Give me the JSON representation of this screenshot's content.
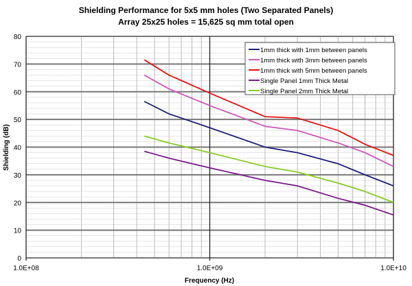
{
  "chart_data": {
    "type": "line",
    "title": "Shielding Performance for 5x5 mm holes (Two Separated Panels)",
    "subtitle": "Array 25x25 holes = 15,625 sq mm total open",
    "xlabel": "Frequency (Hz)",
    "ylabel": "Shielding (dB)",
    "xscale": "log",
    "xlim": [
      100000000.0,
      10000000000.0
    ],
    "ylim": [
      0,
      80
    ],
    "xticks": [
      {
        "v": 100000000.0,
        "label": "1.0E+08"
      },
      {
        "v": 1000000000.0,
        "label": "1.0E+09"
      },
      {
        "v": 10000000000.0,
        "label": "1.0E+10"
      }
    ],
    "yticks": [
      {
        "v": 0,
        "label": "0"
      },
      {
        "v": 10,
        "label": "10"
      },
      {
        "v": 20,
        "label": "20"
      },
      {
        "v": 30,
        "label": "30"
      },
      {
        "v": 40,
        "label": "40"
      },
      {
        "v": 50,
        "label": "50"
      },
      {
        "v": 60,
        "label": "60"
      },
      {
        "v": 70,
        "label": "70"
      },
      {
        "v": 80,
        "label": "80"
      }
    ],
    "grid": true,
    "legend_position": "top-right",
    "x": [
      440000000.0,
      600000000.0,
      1000000000.0,
      2000000000.0,
      3000000000.0,
      5000000000.0,
      7000000000.0,
      10000000000.0
    ],
    "series": [
      {
        "name": "1mm thick with 1mm between panels",
        "color": "#1f1f7a",
        "values": [
          56.5,
          52,
          47,
          40,
          38,
          34,
          30,
          26
        ]
      },
      {
        "name": "1mm thick with 3mm between panels",
        "color": "#cc55bb",
        "values": [
          66,
          61,
          55,
          47.5,
          46,
          41.5,
          38,
          33
        ]
      },
      {
        "name": "1mm thick with 5mm between panels",
        "color": "#ee1111",
        "values": [
          71.5,
          66,
          59.5,
          51,
          50.5,
          46,
          41,
          37
        ]
      },
      {
        "name": "Single Panel 1mm Thick Metal",
        "color": "#7a1a8a",
        "values": [
          38.5,
          36,
          32.5,
          28,
          26,
          21.5,
          19,
          15.5
        ]
      },
      {
        "name": "Single Panel 2mm Thick Metal",
        "color": "#88cc22",
        "values": [
          44,
          41.5,
          38,
          33,
          31,
          27,
          24,
          20
        ]
      }
    ]
  }
}
